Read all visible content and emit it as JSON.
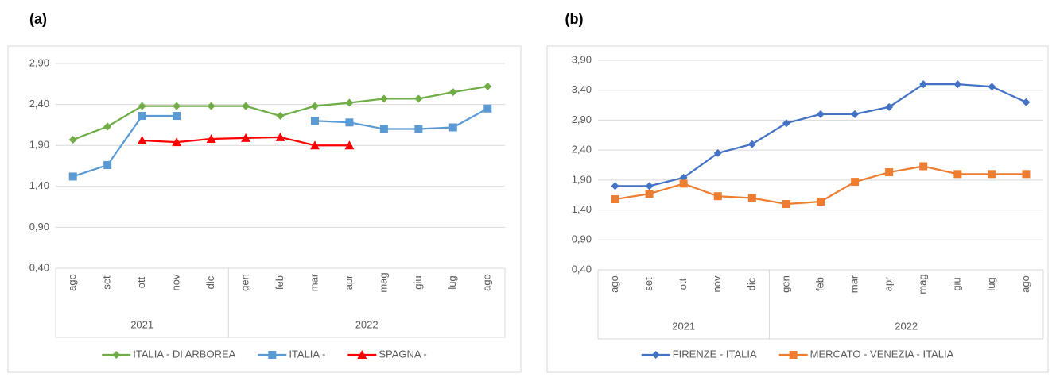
{
  "chart_data": [
    {
      "type": "line",
      "label": "(a)",
      "categories": [
        "ago",
        "set",
        "ott",
        "nov",
        "dic",
        "gen",
        "feb",
        "mar",
        "apr",
        "mag",
        "giu",
        "lug",
        "ago"
      ],
      "groups": [
        {
          "name": "2021",
          "size": 5
        },
        {
          "name": "2022",
          "size": 8
        }
      ],
      "ylim": [
        0.4,
        2.9
      ],
      "yticks": [
        {
          "value": 0.4,
          "label": "0,40"
        },
        {
          "value": 0.9,
          "label": "0,90"
        },
        {
          "value": 1.4,
          "label": "1,40"
        },
        {
          "value": 1.9,
          "label": "1,90"
        },
        {
          "value": 2.4,
          "label": "2,40"
        },
        {
          "value": 2.9,
          "label": "2,90"
        }
      ],
      "grid": true,
      "series": [
        {
          "name": "ITALIA - DI ARBOREA",
          "color": "#70ad47",
          "marker": "diamond",
          "values": [
            1.97,
            2.13,
            2.38,
            2.38,
            2.38,
            2.38,
            2.26,
            2.38,
            2.42,
            2.47,
            2.47,
            2.55,
            2.62
          ]
        },
        {
          "name": "ITALIA -",
          "color": "#5b9bd5",
          "marker": "square",
          "values": [
            1.52,
            1.66,
            2.26,
            2.26,
            null,
            null,
            null,
            2.2,
            2.18,
            2.1,
            2.1,
            2.12,
            2.35
          ]
        },
        {
          "name": "SPAGNA -",
          "color": "#ff0000",
          "marker": "triangle",
          "values": [
            null,
            null,
            1.96,
            1.94,
            1.98,
            1.99,
            2.0,
            1.9,
            1.9,
            null,
            null,
            null,
            null
          ]
        }
      ]
    },
    {
      "type": "line",
      "label": "(b)",
      "categories": [
        "ago",
        "set",
        "ott",
        "nov",
        "dic",
        "gen",
        "feb",
        "mar",
        "apr",
        "mag",
        "giu",
        "lug",
        "ago"
      ],
      "groups": [
        {
          "name": "2021",
          "size": 5
        },
        {
          "name": "2022",
          "size": 8
        }
      ],
      "ylim": [
        0.4,
        3.9
      ],
      "yticks": [
        {
          "value": 0.4,
          "label": "0,40"
        },
        {
          "value": 0.9,
          "label": "0,90"
        },
        {
          "value": 1.4,
          "label": "1,40"
        },
        {
          "value": 1.9,
          "label": "1,90"
        },
        {
          "value": 2.4,
          "label": "2,40"
        },
        {
          "value": 2.9,
          "label": "2,90"
        },
        {
          "value": 3.4,
          "label": "3,40"
        },
        {
          "value": 3.9,
          "label": "3,90"
        }
      ],
      "grid": true,
      "series": [
        {
          "name": "FIRENZE - ITALIA",
          "color": "#4472c4",
          "marker": "diamond",
          "values": [
            1.8,
            1.8,
            1.94,
            2.35,
            2.5,
            2.85,
            3.0,
            3.0,
            3.12,
            3.5,
            3.5,
            3.46,
            3.2
          ]
        },
        {
          "name": "MERCATO - VENEZIA - ITALIA",
          "color": "#ed7d31",
          "marker": "square",
          "values": [
            1.58,
            1.67,
            1.84,
            1.63,
            1.6,
            1.5,
            1.54,
            1.87,
            2.03,
            2.13,
            2.0,
            2.0,
            2.0
          ]
        }
      ]
    }
  ]
}
